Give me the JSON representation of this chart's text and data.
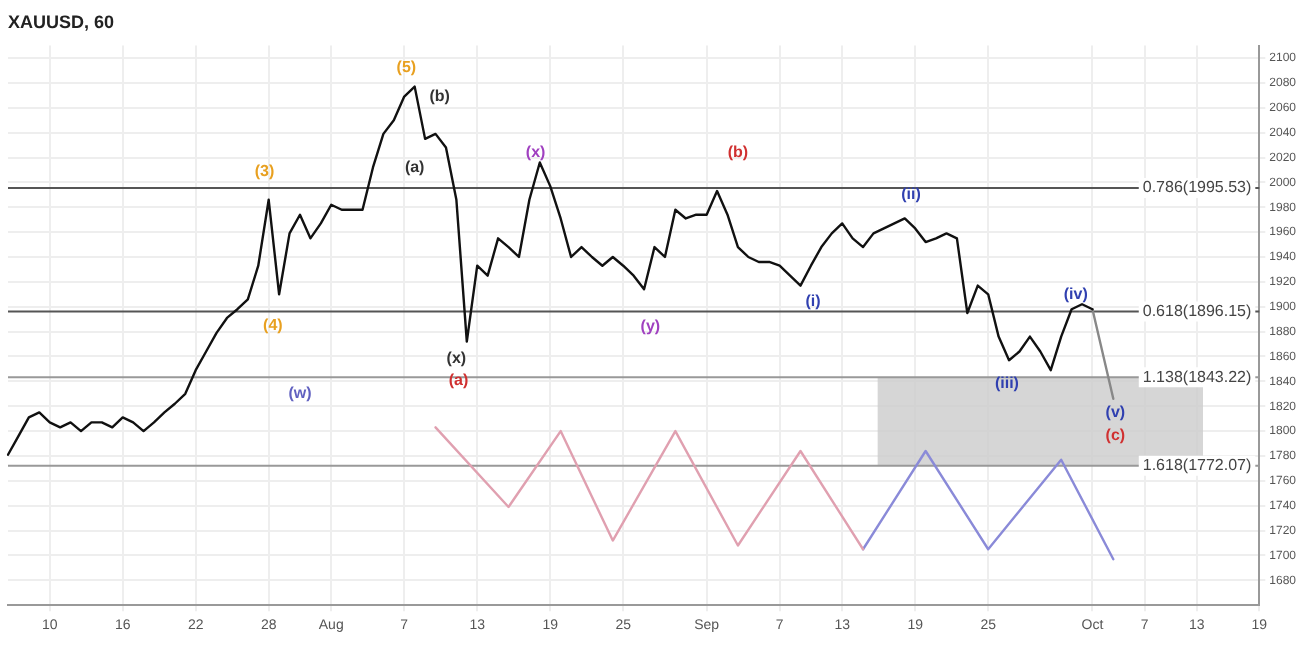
{
  "chart_data": {
    "type": "line",
    "title": "XAUUSD, 60",
    "marker": "none",
    "grid": true,
    "categories": [
      null,
      null,
      null,
      null,
      "10",
      null,
      null,
      null,
      null,
      null,
      null,
      "16",
      null,
      null,
      null,
      null,
      null,
      null,
      "22",
      null,
      null,
      null,
      null,
      null,
      null,
      "28",
      null,
      null,
      null,
      null,
      null,
      "Aug",
      null,
      null,
      null,
      null,
      null,
      null,
      "7",
      null,
      null,
      null,
      null,
      null,
      null,
      "13",
      null,
      null,
      null,
      null,
      null,
      null,
      "19",
      null,
      null,
      null,
      null,
      null,
      null,
      "25",
      null,
      null,
      null,
      null,
      null,
      null,
      null,
      "Sep",
      null,
      null,
      null,
      null,
      null,
      null,
      "7",
      null,
      null,
      null,
      null,
      null,
      "13",
      null,
      null,
      null,
      null,
      null,
      null,
      "19",
      null,
      null,
      null,
      null,
      null,
      null,
      "25",
      null,
      null,
      null,
      null,
      null,
      null,
      null,
      null,
      null,
      "Oct",
      null,
      null,
      null,
      null,
      "7",
      null,
      null,
      null,
      null,
      "13",
      null,
      null,
      null,
      null,
      null,
      "19"
    ],
    "yticks": [
      1680,
      1700,
      1720,
      1740,
      1760,
      1780,
      1800,
      1820,
      1840,
      1860,
      1880,
      1900,
      1920,
      1940,
      1960,
      1980,
      2000,
      2020,
      2040,
      2060,
      2080,
      2100
    ],
    "ylim": [
      1660,
      2110
    ],
    "series": [
      {
        "color": "#111111",
        "values": [
          1781,
          1796,
          1811,
          1815,
          1807,
          1803,
          1807,
          1800,
          1807,
          1807,
          1803,
          1811,
          1807,
          1800,
          1807,
          1815,
          1822,
          1830,
          1849,
          1864,
          1879,
          1891,
          1898,
          1906,
          1933,
          1986,
          1910,
          1959,
          1974,
          1955,
          1967,
          1982,
          1978,
          1978,
          1978,
          2012,
          2039,
          2050,
          2069,
          2077,
          2035,
          2039,
          2028,
          1986,
          1872,
          1933,
          1925,
          1955,
          1948,
          1940,
          1986,
          2016,
          1997,
          1971,
          1940,
          1948,
          1940,
          1933,
          1940,
          1933,
          1925,
          1914,
          1948,
          1940,
          1978,
          1971,
          1974,
          1974,
          1993,
          1974,
          1948,
          1940,
          1936,
          1936,
          1933,
          1925,
          1917,
          1933,
          1948,
          1959,
          1967,
          1955,
          1948,
          1959,
          1963,
          1967,
          1971,
          1963,
          1952,
          1955,
          1959,
          1955,
          1895,
          1917,
          1910,
          1876,
          1857,
          1864,
          1876,
          1864,
          1849,
          1876,
          1898,
          1902,
          1898,
          null,
          null,
          null,
          null,
          null,
          null,
          null,
          null,
          null,
          null,
          null,
          null,
          null,
          null,
          null,
          null
        ]
      },
      {
        "color": "#e0a0b0",
        "values": [
          null,
          null,
          null,
          null,
          null,
          null,
          null,
          null,
          null,
          null,
          null,
          null,
          null,
          null,
          null,
          null,
          null,
          null,
          null,
          null,
          null,
          null,
          null,
          null,
          null,
          null,
          null,
          null,
          null,
          null,
          null,
          null,
          null,
          null,
          null,
          null,
          null,
          null,
          null,
          null,
          null,
          1803,
          null,
          null,
          null,
          null,
          null,
          null,
          1739,
          null,
          null,
          null,
          null,
          1800,
          null,
          null,
          null,
          null,
          1712,
          null,
          null,
          null,
          null,
          null,
          1800,
          null,
          null,
          null,
          null,
          null,
          1708,
          null,
          null,
          null,
          null,
          null,
          1784,
          null,
          null,
          null,
          null,
          null,
          1705,
          null,
          null,
          null,
          null,
          null,
          null,
          null,
          null,
          null,
          null,
          null,
          null,
          null,
          null,
          null,
          null,
          null,
          null,
          null,
          null,
          null,
          null,
          null,
          null,
          null,
          null,
          null,
          null,
          null,
          null,
          null,
          null,
          null,
          null,
          null,
          null,
          null,
          null
        ]
      },
      {
        "color": "#8a8ad8",
        "values": [
          null,
          null,
          null,
          null,
          null,
          null,
          null,
          null,
          null,
          null,
          null,
          null,
          null,
          null,
          null,
          null,
          null,
          null,
          null,
          null,
          null,
          null,
          null,
          null,
          null,
          null,
          null,
          null,
          null,
          null,
          null,
          null,
          null,
          null,
          null,
          null,
          null,
          null,
          null,
          null,
          null,
          null,
          null,
          null,
          null,
          null,
          null,
          null,
          null,
          null,
          null,
          null,
          null,
          null,
          null,
          null,
          null,
          null,
          null,
          null,
          null,
          null,
          null,
          null,
          null,
          null,
          null,
          null,
          null,
          null,
          null,
          null,
          null,
          null,
          null,
          null,
          null,
          null,
          null,
          null,
          null,
          null,
          1705,
          null,
          null,
          null,
          null,
          null,
          1784,
          null,
          null,
          null,
          null,
          null,
          1705,
          null,
          null,
          null,
          null,
          null,
          null,
          1777,
          null,
          null,
          null,
          null,
          1697,
          null,
          null,
          null,
          null,
          null,
          null,
          null,
          null,
          null,
          null,
          null,
          null,
          null,
          null
        ]
      },
      {
        "color": "#888888",
        "values": [
          null,
          null,
          null,
          null,
          null,
          null,
          null,
          null,
          null,
          null,
          null,
          null,
          null,
          null,
          null,
          null,
          null,
          null,
          null,
          null,
          null,
          null,
          null,
          null,
          null,
          null,
          null,
          null,
          null,
          null,
          null,
          null,
          null,
          null,
          null,
          null,
          null,
          null,
          null,
          null,
          null,
          null,
          null,
          null,
          null,
          null,
          null,
          null,
          null,
          null,
          null,
          null,
          null,
          null,
          null,
          null,
          null,
          null,
          null,
          null,
          null,
          null,
          null,
          null,
          null,
          null,
          null,
          null,
          null,
          null,
          null,
          null,
          null,
          null,
          null,
          null,
          null,
          null,
          null,
          null,
          null,
          null,
          null,
          null,
          null,
          null,
          null,
          null,
          null,
          null,
          null,
          null,
          null,
          null,
          null,
          null,
          null,
          null,
          null,
          null,
          null,
          null,
          null,
          null,
          1898,
          null,
          1826,
          null,
          null,
          null,
          null,
          null,
          null,
          null,
          null,
          null,
          null,
          null,
          null,
          null,
          null
        ]
      }
    ],
    "bands": [
      {
        "axis": "y",
        "from": 1772.07,
        "to": 1843.22,
        "color": "#cccccc"
      }
    ],
    "ref_lines": [
      {
        "axis": "y",
        "value": 1995.53,
        "label": "0.786(1995.53)",
        "color": "#555555"
      },
      {
        "axis": "y",
        "value": 1896.15,
        "label": "0.618(1896.15)",
        "color": "#555555"
      },
      {
        "axis": "y",
        "value": 1843.22,
        "label": "1.138(1843.22)",
        "color": "#999999"
      },
      {
        "axis": "y",
        "value": 1772.07,
        "label": "1.618(1772.07)",
        "color": "#999999"
      }
    ],
    "annotations": [
      "(3)",
      "(4)",
      "(5)",
      "(a)",
      "(b)",
      "(x)",
      "(a)",
      "(w)",
      "(x)",
      "(y)",
      "(b)",
      "(i)",
      "(ii)",
      "(iii)",
      "(iv)",
      "(v)",
      "(c)"
    ]
  }
}
